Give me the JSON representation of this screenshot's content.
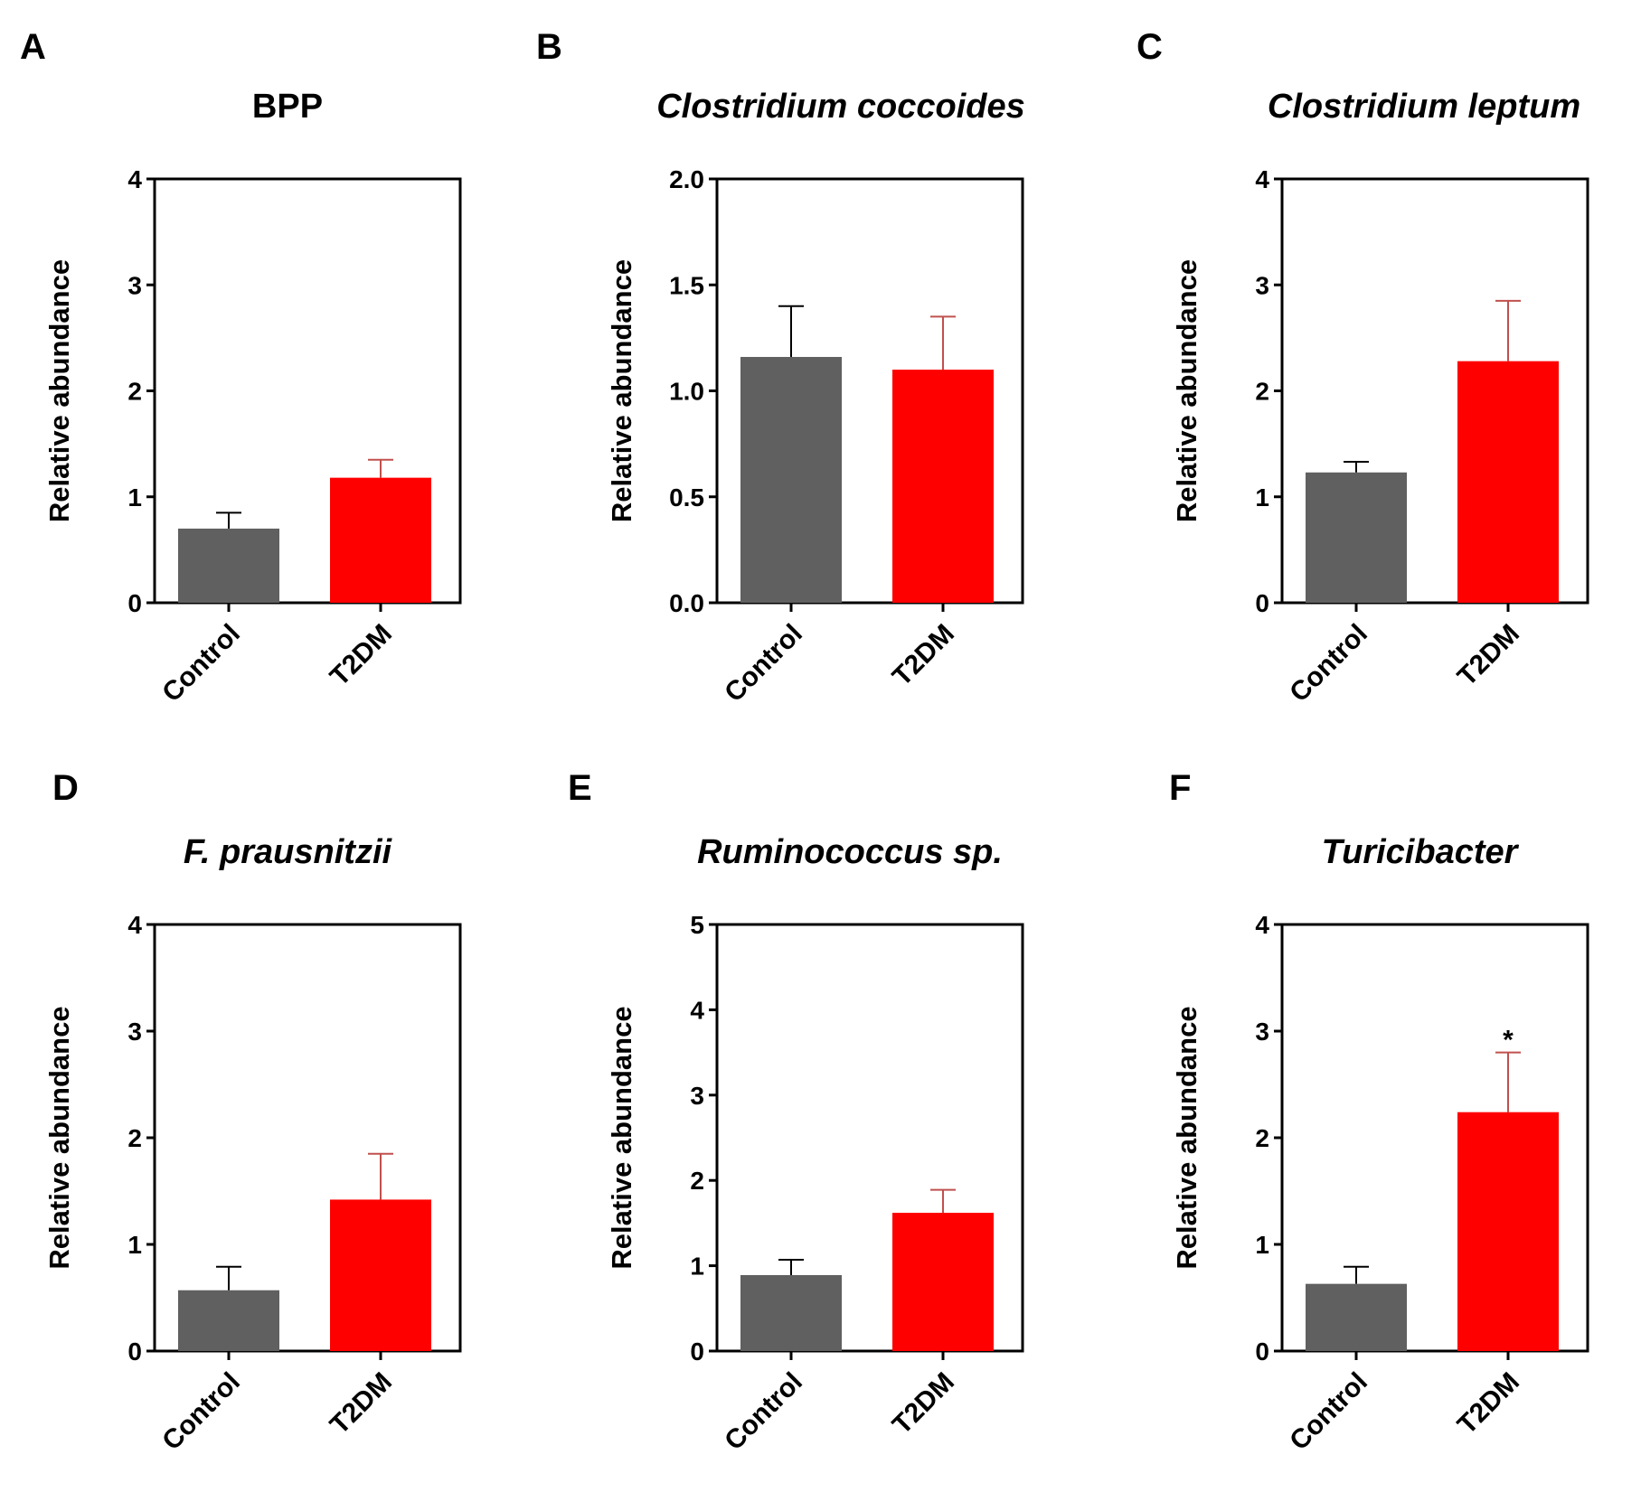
{
  "figure": {
    "colors": {
      "control": "#606060",
      "t2dm": "#ff0000",
      "t2dm_error": "#c0504d",
      "axis": "#000000"
    }
  },
  "chart_data": [
    {
      "panel": "A",
      "type": "bar",
      "title": "BPP",
      "title_italic": false,
      "categories": [
        "Control",
        "T2DM"
      ],
      "values": [
        0.7,
        1.18
      ],
      "errors": [
        0.15,
        0.17
      ],
      "ylabel": "Relative abundance",
      "ylim": [
        0,
        4
      ],
      "yticks": [
        "0",
        "1",
        "2",
        "3",
        "4"
      ],
      "significance": [
        "",
        ""
      ]
    },
    {
      "panel": "B",
      "type": "bar",
      "title": "Clostridium coccoides",
      "title_italic": true,
      "categories": [
        "Control",
        "T2DM"
      ],
      "values": [
        1.16,
        1.1
      ],
      "errors": [
        0.24,
        0.25
      ],
      "ylabel": "Relative abundance",
      "ylim": [
        0,
        2
      ],
      "yticks": [
        "0.0",
        "0.5",
        "1.0",
        "1.5",
        "2.0"
      ],
      "significance": [
        "",
        ""
      ]
    },
    {
      "panel": "C",
      "type": "bar",
      "title": "Clostridium leptum",
      "title_italic": true,
      "categories": [
        "Control",
        "T2DM"
      ],
      "values": [
        1.23,
        2.28
      ],
      "errors": [
        0.1,
        0.57
      ],
      "ylabel": "Relative abundance",
      "ylim": [
        0,
        4
      ],
      "yticks": [
        "0",
        "1",
        "2",
        "3",
        "4"
      ],
      "significance": [
        "",
        ""
      ]
    },
    {
      "panel": "D",
      "type": "bar",
      "title": "F. prausnitzii",
      "title_italic": true,
      "categories": [
        "Control",
        "T2DM"
      ],
      "values": [
        0.57,
        1.42
      ],
      "errors": [
        0.22,
        0.43
      ],
      "ylabel": "Relative abundance",
      "ylim": [
        0,
        4
      ],
      "yticks": [
        "0",
        "1",
        "2",
        "3",
        "4"
      ],
      "significance": [
        "",
        ""
      ]
    },
    {
      "panel": "E",
      "type": "bar",
      "title": "Ruminococcus sp.",
      "title_italic": true,
      "categories": [
        "Control",
        "T2DM"
      ],
      "values": [
        0.89,
        1.62
      ],
      "errors": [
        0.18,
        0.27
      ],
      "ylabel": "Relative abundance",
      "ylim": [
        0,
        5
      ],
      "yticks": [
        "0",
        "1",
        "2",
        "3",
        "4",
        "5"
      ],
      "significance": [
        "",
        ""
      ]
    },
    {
      "panel": "F",
      "type": "bar",
      "title": "Turicibacter",
      "title_italic": true,
      "categories": [
        "Control",
        "T2DM"
      ],
      "values": [
        0.63,
        2.24
      ],
      "errors": [
        0.16,
        0.56
      ],
      "ylabel": "Relative abundance",
      "ylim": [
        0,
        4
      ],
      "yticks": [
        "0",
        "1",
        "2",
        "3",
        "4"
      ],
      "significance": [
        "",
        "*"
      ]
    }
  ]
}
